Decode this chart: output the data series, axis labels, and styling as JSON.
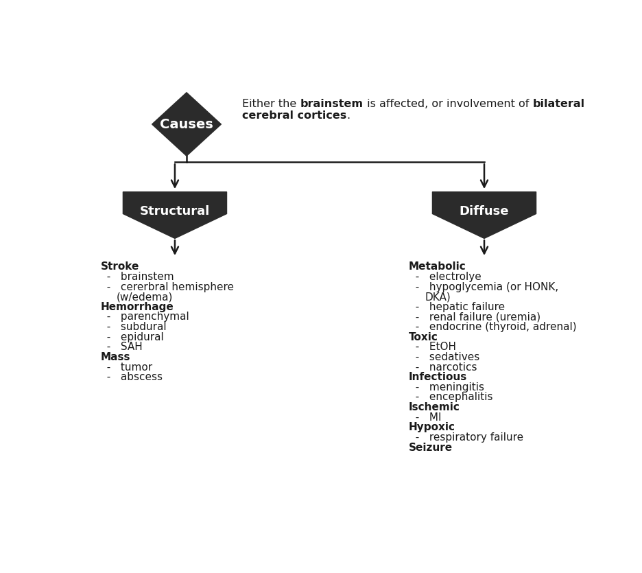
{
  "bg_color": "#ffffff",
  "shape_color": "#2b2b2b",
  "text_color_white": "#ffffff",
  "text_color_black": "#1a1a1a",
  "causes_label": "Causes",
  "structural_label": "Structural",
  "diffuse_label": "Diffuse",
  "structural_items": [
    {
      "type": "header",
      "text": "Stroke"
    },
    {
      "type": "item",
      "text": "brainstem"
    },
    {
      "type": "item",
      "text": "cererbral hemisphere\n(w/edema)"
    },
    {
      "type": "header",
      "text": "Hemorrhage"
    },
    {
      "type": "item",
      "text": "parenchymal"
    },
    {
      "type": "item",
      "text": "subdural"
    },
    {
      "type": "item",
      "text": "epidural"
    },
    {
      "type": "item",
      "text": "SAH"
    },
    {
      "type": "header",
      "text": "Mass"
    },
    {
      "type": "item",
      "text": "tumor"
    },
    {
      "type": "item",
      "text": "abscess"
    }
  ],
  "diffuse_items": [
    {
      "type": "header",
      "text": "Metabolic"
    },
    {
      "type": "item",
      "text": "electrolye"
    },
    {
      "type": "item",
      "text": "hypoglycemia (or HONK,\nDKA)"
    },
    {
      "type": "item",
      "text": "hepatic failure"
    },
    {
      "type": "item",
      "text": "renal failure (uremia)"
    },
    {
      "type": "item",
      "text": "endocrine (thyroid, adrenal)"
    },
    {
      "type": "header",
      "text": "Toxic"
    },
    {
      "type": "item",
      "text": "EtOH"
    },
    {
      "type": "item",
      "text": "sedatives"
    },
    {
      "type": "item",
      "text": "narcotics"
    },
    {
      "type": "header",
      "text": "Infectious"
    },
    {
      "type": "item",
      "text": "meningitis"
    },
    {
      "type": "item",
      "text": "encephalitis"
    },
    {
      "type": "header",
      "text": "Ischemic"
    },
    {
      "type": "item",
      "text": "MI"
    },
    {
      "type": "header",
      "text": "Hypoxic"
    },
    {
      "type": "item",
      "text": "respiratory failure"
    },
    {
      "type": "header",
      "text": "Seizure"
    }
  ]
}
